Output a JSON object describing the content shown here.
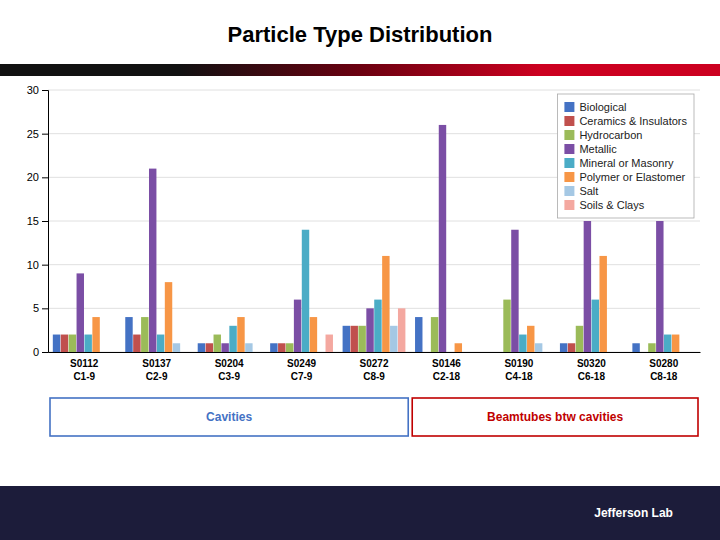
{
  "chart_data": {
    "type": "bar",
    "title": "Particle Type Distribution",
    "categories": [
      "S0112\nC1-9",
      "S0137\nC2-9",
      "S0204\nC3-9",
      "S0249\nC7-9",
      "S0272\nC8-9",
      "S0146\nC2-18",
      "S0190\nC4-18",
      "S0320\nC6-18",
      "S0280\nC8-18"
    ],
    "series": [
      {
        "name": "Biological",
        "color": "#4472C4",
        "values": [
          2,
          4,
          1,
          1,
          3,
          4,
          0,
          1,
          1
        ]
      },
      {
        "name": "Ceramics & Insulators",
        "color": "#C0504D",
        "values": [
          2,
          2,
          1,
          1,
          3,
          0,
          0,
          1,
          0
        ]
      },
      {
        "name": "Hydrocarbon",
        "color": "#9BBB59",
        "values": [
          2,
          4,
          2,
          1,
          3,
          4,
          6,
          3,
          1
        ]
      },
      {
        "name": "Metallic",
        "color": "#7B4EA5",
        "values": [
          9,
          21,
          1,
          6,
          5,
          26,
          14,
          15,
          15
        ]
      },
      {
        "name": "Mineral or Masonry",
        "color": "#4BACC6",
        "values": [
          2,
          2,
          3,
          14,
          6,
          0,
          2,
          6,
          2
        ]
      },
      {
        "name": "Polymer or Elastomer",
        "color": "#F79646",
        "values": [
          4,
          8,
          4,
          4,
          11,
          1,
          3,
          11,
          2
        ]
      },
      {
        "name": "Salt",
        "color": "#A5C8E4",
        "values": [
          0,
          1,
          1,
          0,
          3,
          0,
          1,
          0,
          0
        ]
      },
      {
        "name": "Soils & Clays",
        "color": "#F4A8A0",
        "values": [
          0,
          0,
          0,
          2,
          5,
          0,
          0,
          0,
          0
        ]
      }
    ],
    "ylim": [
      0,
      30
    ],
    "yticks": [
      0,
      5,
      10,
      15,
      20,
      25,
      30
    ],
    "grid": true,
    "legend": "upper right",
    "annotations": [
      {
        "text": "Cavities",
        "color": "#4472C4",
        "from": "S0112\nC1-9",
        "to": "S0272\nC8-9"
      },
      {
        "text": "Beamtubes btw cavities",
        "color": "#C00000",
        "from": "S0146\nC2-18",
        "to": "S0280\nC8-18"
      },
      {
        "text": "Jefferson Lab"
      }
    ]
  }
}
